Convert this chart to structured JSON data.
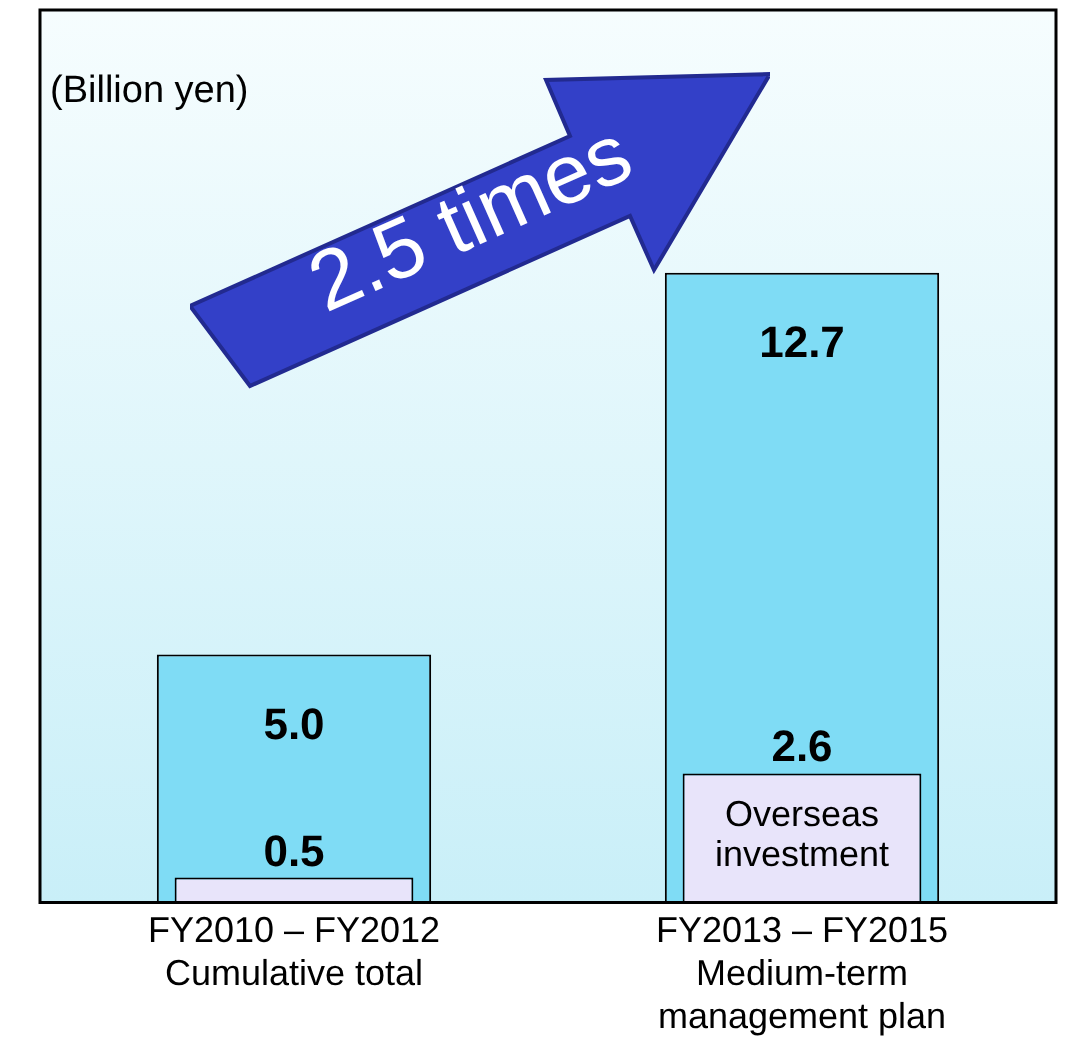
{
  "chart_data": {
    "type": "bar",
    "ylabel": "(Billion yen)",
    "categories": [
      "FY2010 – FY2012\nCumulative total",
      "FY2013 – FY2015\nMedium-term\nmanagement plan"
    ],
    "series": [
      {
        "color": "#7fdcf5",
        "values": [
          5.0,
          12.7
        ],
        "value_labels": [
          "5.0",
          "12.7"
        ]
      },
      {
        "name": "Overseas investment",
        "color": "#e8e4fa",
        "values": [
          0.5,
          2.6
        ],
        "value_labels": [
          "0.5",
          "2.6"
        ]
      }
    ],
    "grid": false,
    "legend": false,
    "annotations": [
      "2.5 times"
    ]
  }
}
